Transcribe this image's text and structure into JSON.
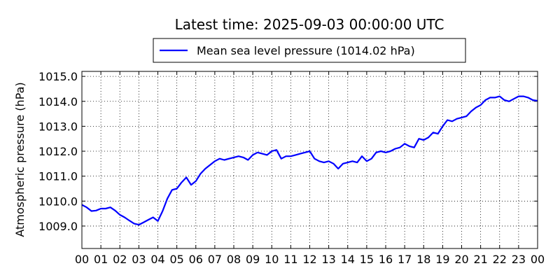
{
  "chart_data": {
    "type": "line",
    "title": "Latest time: 2025-09-03 00:00:00 UTC",
    "xlabel": "",
    "ylabel": "Atmospheric pressure (hPa)",
    "x_ticks": [
      "00",
      "01",
      "02",
      "03",
      "04",
      "05",
      "06",
      "07",
      "08",
      "09",
      "10",
      "11",
      "12",
      "13",
      "14",
      "15",
      "16",
      "17",
      "18",
      "19",
      "20",
      "21",
      "22",
      "23",
      "00"
    ],
    "xlim": [
      0,
      24
    ],
    "ylim": [
      1008.1,
      1015.2
    ],
    "y_ticks": [
      "1009.0",
      "1010.0",
      "1011.0",
      "1012.0",
      "1013.0",
      "1014.0",
      "1015.0"
    ],
    "y_tick_values": [
      1009,
      1010,
      1011,
      1012,
      1013,
      1014,
      1015
    ],
    "grid": true,
    "legend_position": "top-center",
    "series": [
      {
        "name": "Mean sea level pressure (1014.02 hPa)",
        "color": "#0000ff",
        "x": [
          0.0,
          0.25,
          0.5,
          0.75,
          1.0,
          1.25,
          1.5,
          1.75,
          2.0,
          2.25,
          2.5,
          2.75,
          3.0,
          3.25,
          3.5,
          3.75,
          4.0,
          4.25,
          4.5,
          4.75,
          5.0,
          5.25,
          5.5,
          5.75,
          6.0,
          6.25,
          6.5,
          6.75,
          7.0,
          7.25,
          7.5,
          7.75,
          8.0,
          8.25,
          8.5,
          8.75,
          9.0,
          9.25,
          9.5,
          9.75,
          10.0,
          10.25,
          10.5,
          10.75,
          11.0,
          11.25,
          11.5,
          11.75,
          12.0,
          12.25,
          12.5,
          12.75,
          13.0,
          13.25,
          13.5,
          13.75,
          14.0,
          14.25,
          14.5,
          14.75,
          15.0,
          15.25,
          15.5,
          15.75,
          16.0,
          16.25,
          16.5,
          16.75,
          17.0,
          17.25,
          17.5,
          17.75,
          18.0,
          18.25,
          18.5,
          18.75,
          19.0,
          19.25,
          19.5,
          19.75,
          20.0,
          20.25,
          20.5,
          20.75,
          21.0,
          21.25,
          21.5,
          21.75,
          22.0,
          22.25,
          22.5,
          22.75,
          23.0,
          23.25,
          23.5,
          23.75,
          24.0
        ],
        "values": [
          1009.85,
          1009.75,
          1009.6,
          1009.62,
          1009.7,
          1009.7,
          1009.75,
          1009.62,
          1009.45,
          1009.35,
          1009.22,
          1009.1,
          1009.05,
          1009.15,
          1009.25,
          1009.35,
          1009.2,
          1009.6,
          1010.1,
          1010.45,
          1010.5,
          1010.75,
          1010.95,
          1010.65,
          1010.8,
          1011.1,
          1011.3,
          1011.45,
          1011.6,
          1011.7,
          1011.65,
          1011.7,
          1011.75,
          1011.8,
          1011.75,
          1011.65,
          1011.85,
          1011.95,
          1011.9,
          1011.85,
          1012.0,
          1012.05,
          1011.7,
          1011.8,
          1011.8,
          1011.85,
          1011.9,
          1011.95,
          1012.0,
          1011.7,
          1011.6,
          1011.55,
          1011.6,
          1011.5,
          1011.3,
          1011.5,
          1011.55,
          1011.6,
          1011.55,
          1011.8,
          1011.6,
          1011.7,
          1011.95,
          1012.0,
          1011.95,
          1012.0,
          1012.1,
          1012.15,
          1012.3,
          1012.2,
          1012.15,
          1012.5,
          1012.45,
          1012.55,
          1012.75,
          1012.7,
          1013.0,
          1013.25,
          1013.2,
          1013.3,
          1013.35,
          1013.4,
          1013.6,
          1013.75,
          1013.85,
          1014.05,
          1014.15,
          1014.15,
          1014.2,
          1014.05,
          1014.0,
          1014.1,
          1014.2,
          1014.2,
          1014.15,
          1014.05,
          1014.02
        ]
      }
    ]
  }
}
